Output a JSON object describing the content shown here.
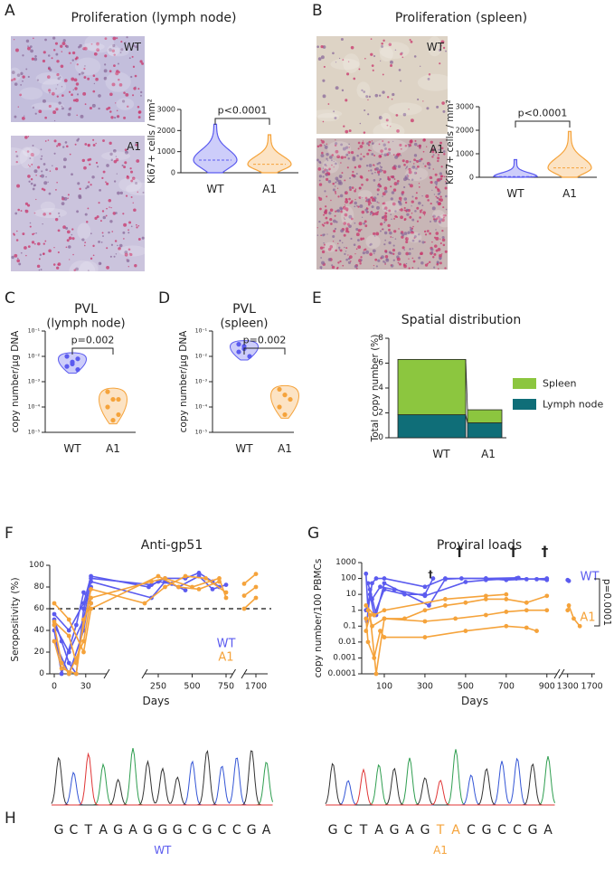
{
  "chart_data": [
    {
      "type": "violin",
      "panel_label": "A",
      "title": "Proliferation (lymph node)",
      "images": [
        {
          "label": "WT",
          "color": "#c3bedc"
        },
        {
          "label": "A1",
          "color": "#cbc4dd"
        }
      ],
      "y_label": "Ki67+ cells / mm²",
      "ylim": [
        0,
        3000
      ],
      "yticks": [
        0,
        1000,
        2000,
        3000
      ],
      "categories": [
        "WT",
        "A1"
      ],
      "distributions": [
        {
          "min": 0,
          "median": 600,
          "max": 2300,
          "color": "#5b5bef"
        },
        {
          "min": 0,
          "median": 400,
          "max": 1800,
          "color": "#f5a33b"
        }
      ],
      "annotation": "p<0.0001"
    },
    {
      "type": "violin",
      "panel_label": "B",
      "title": "Proliferation (spleen)",
      "images": [
        {
          "label": "WT",
          "color": "#ddd3c5"
        },
        {
          "label": "A1",
          "color": "#c8b6b6"
        }
      ],
      "y_label": "Ki67+ cells / mm²",
      "ylim": [
        0,
        3000
      ],
      "yticks": [
        0,
        1000,
        2000,
        3000
      ],
      "categories": [
        "WT",
        "A1"
      ],
      "distributions": [
        {
          "min": 0,
          "median": 30,
          "max": 750,
          "color": "#5b5bef"
        },
        {
          "min": 0,
          "median": 400,
          "max": 1950,
          "color": "#f5a33b"
        }
      ],
      "annotation": "p<0.0001"
    },
    {
      "type": "strip",
      "panel_label": "C",
      "title": "PVL",
      "subtitle": "(lymph node)",
      "y_label": "copy number/µg DNA",
      "log_y": true,
      "ylim": [
        1e-05,
        0.1
      ],
      "yticks": [
        {
          "value": 1e-05,
          "label": "10⁻⁵"
        },
        {
          "value": 0.0001,
          "label": "10⁻⁴"
        },
        {
          "value": 0.001,
          "label": "10⁻³"
        },
        {
          "value": 0.01,
          "label": "10⁻²"
        },
        {
          "value": 0.1,
          "label": "10⁻¹"
        }
      ],
      "categories": [
        "WT",
        "A1"
      ],
      "colors": [
        "#5b5bef",
        "#f5a33b"
      ],
      "values": [
        [
          0.01,
          0.005,
          0.008,
          0.004,
          0.006,
          0.003
        ],
        [
          0.0004,
          0.0002,
          5e-05,
          0.0001,
          3e-05,
          0.0002
        ]
      ],
      "annotation": "p=0.002"
    },
    {
      "type": "strip",
      "panel_label": "D",
      "title": "PVL",
      "subtitle": "(spleen)",
      "y_label": "copy number/µg DNA",
      "log_y": true,
      "ylim": [
        1e-05,
        0.1
      ],
      "yticks": [
        {
          "value": 1e-05,
          "label": "10⁻⁵"
        },
        {
          "value": 0.0001,
          "label": "10⁻⁴"
        },
        {
          "value": 0.001,
          "label": "10⁻³"
        },
        {
          "value": 0.01,
          "label": "10⁻²"
        },
        {
          "value": 0.1,
          "label": "10⁻¹"
        }
      ],
      "categories": [
        "WT",
        "A1"
      ],
      "colors": [
        "#5b5bef",
        "#f5a33b"
      ],
      "values": [
        [
          0.03,
          0.02,
          0.01,
          0.015,
          0.025
        ],
        [
          0.0005,
          0.0003,
          0.0002,
          0.0001,
          5e-05
        ]
      ],
      "annotation": "p=0.002"
    },
    {
      "type": "stacked_bar",
      "panel_label": "E",
      "title": "Spatial distribution",
      "y_label": "Total copy number (%)",
      "ylim": [
        0,
        8
      ],
      "yticks": [
        0,
        2,
        4,
        6,
        8
      ],
      "categories": [
        "WT",
        "A1"
      ],
      "series": [
        {
          "name": "Lymph node",
          "color": "#0f6e78",
          "values": [
            1.85,
            1.2
          ]
        },
        {
          "name": "Spleen",
          "color": "#8cc63f",
          "values": [
            4.45,
            1.05
          ]
        }
      ]
    },
    {
      "type": "line",
      "panel_label": "F",
      "title": "Anti-gp51",
      "y_label": "Seropositivity (%)",
      "x_label": "Days",
      "ylim": [
        0,
        100
      ],
      "yticks": [
        0,
        20,
        40,
        60,
        80,
        100
      ],
      "x_segments": [
        [
          0,
          50
        ],
        [
          150,
          800
        ],
        [
          1650,
          1750
        ]
      ],
      "xticks": [
        0,
        30,
        250,
        500,
        750,
        1700
      ],
      "hline": 60,
      "series": [
        {
          "name": "WT",
          "color": "#5b5bef",
          "subjects": [
            {
              "x": [
                0,
                14,
                28,
                35,
                200,
                300,
                450,
                550,
                650,
                700
              ],
              "values": [
                45,
                20,
                50,
                88,
                82,
                88,
                88,
                93,
                85,
                80
              ]
            },
            {
              "x": [
                0,
                7,
                14,
                21,
                28,
                35,
                200,
                300,
                400,
                550,
                650,
                750
              ],
              "values": [
                50,
                30,
                10,
                0,
                60,
                85,
                70,
                85,
                80,
                90,
                78,
                82
              ]
            },
            {
              "x": [
                0,
                14,
                28,
                35
              ],
              "values": [
                30,
                0,
                40,
                80
              ]
            },
            {
              "x": [
                0,
                7,
                21,
                28,
                35
              ],
              "values": [
                40,
                0,
                45,
                75,
                65
              ]
            },
            {
              "x": [
                0,
                14,
                28,
                35,
                180,
                250,
                350,
                450
              ],
              "values": [
                55,
                40,
                65,
                90,
                80,
                85,
                83,
                77
              ]
            }
          ]
        },
        {
          "name": "A1",
          "color": "#f5a33b",
          "subjects": [
            {
              "x": [
                0,
                7,
                14,
                28,
                35,
                200,
                300,
                500,
                700,
                750
              ],
              "values": [
                45,
                10,
                0,
                30,
                70,
                85,
                88,
                80,
                88,
                70
              ]
            },
            {
              "x": [
                0,
                14,
                28,
                35,
                250,
                400,
                550,
                700
              ],
              "values": [
                65,
                50,
                20,
                60,
                90,
                80,
                78,
                85
              ]
            },
            {
              "x": [
                0,
                7,
                21,
                28,
                35
              ],
              "values": [
                30,
                5,
                0,
                50,
                65
              ]
            },
            {
              "x": [
                0,
                14,
                21,
                35,
                150,
                300,
                450,
                600,
                750
              ],
              "values": [
                48,
                35,
                10,
                78,
                65,
                80,
                90,
                88,
                75
              ]
            },
            {
              "x": [
                1650,
                1700
              ],
              "values": [
                83,
                92
              ]
            },
            {
              "x": [
                1650,
                1700
              ],
              "values": [
                72,
                80
              ]
            },
            {
              "x": [
                1650,
                1700
              ],
              "values": [
                60,
                70
              ]
            }
          ]
        }
      ]
    },
    {
      "type": "line",
      "panel_label": "G",
      "title": "Proviral loads",
      "y_label": "copy number/100 PBMCs",
      "x_label": "Days",
      "log_y": true,
      "ylim": [
        0.0001,
        1000
      ],
      "yticks": [
        0.0001,
        0.001,
        0.01,
        0.1,
        1,
        10,
        100,
        1000
      ],
      "x_segments": [
        [
          0,
          950
        ],
        [
          1200,
          1750
        ]
      ],
      "xticks": [
        100,
        300,
        500,
        700,
        900,
        1300,
        1700
      ],
      "annotation": "p=0.0001",
      "daggers": [
        {
          "text": "†",
          "x": 470,
          "y": 5000
        },
        {
          "text": "†",
          "x": 735,
          "y": 5000
        },
        {
          "text": "†",
          "x": 890,
          "y": 5000
        },
        {
          "text": "†",
          "x": 327,
          "y": 180
        }
      ],
      "series": [
        {
          "name": "WT",
          "color": "#5b5bef",
          "subjects": [
            {
              "x": [
                10,
                20,
                40,
                60,
                100,
                300,
                400,
                600,
                700,
                800,
                900
              ],
              "values": [
                200,
                1,
                50,
                100,
                100,
                30,
                100,
                100,
                80,
                90,
                100
              ]
            },
            {
              "x": [
                10,
                30,
                50,
                100,
                200,
                300,
                340
              ],
              "values": [
                1,
                10,
                0.5,
                20,
                10,
                10,
                100
              ]
            },
            {
              "x": [
                20,
                40,
                80,
                150,
                300,
                500,
                600,
                750,
                850,
                900
              ],
              "values": [
                50,
                5,
                30,
                20,
                8,
                60,
                80,
                100,
                90,
                80
              ]
            },
            {
              "x": [
                15,
                30,
                60,
                100,
                320,
                400,
                480,
                600,
                760
              ],
              "values": [
                0.2,
                20,
                0.5,
                50,
                2,
                90,
                100,
                100,
                110
              ]
            },
            {
              "x": [
                1300,
                1320
              ],
              "values": [
                80,
                70
              ]
            }
          ]
        },
        {
          "name": "A1",
          "color": "#f5a33b",
          "subjects": [
            {
              "x": [
                10,
                20,
                50,
                80,
                100,
                300,
                500,
                700,
                800,
                850
              ],
              "values": [
                0.3,
                0.01,
                0.001,
                0.05,
                0.02,
                0.02,
                0.05,
                0.1,
                0.08,
                0.05
              ]
            },
            {
              "x": [
                10,
                30,
                60,
                100,
                300,
                450,
                600,
                700,
                800,
                900
              ],
              "values": [
                0.05,
                0.5,
                0.0001,
                0.3,
                0.2,
                0.3,
                0.5,
                0.8,
                1,
                1
              ]
            },
            {
              "x": [
                20,
                40,
                100,
                200,
                300,
                400,
                500,
                600,
                700,
                800,
                900
              ],
              "values": [
                1,
                0.1,
                0.3,
                0.3,
                1,
                2,
                3,
                5,
                5,
                3,
                8
              ]
            },
            {
              "x": [
                10,
                50,
                100,
                400,
                600,
                700
              ],
              "values": [
                2,
                0.5,
                1,
                5,
                8,
                10
              ]
            },
            {
              "x": [
                1300,
                1320,
                1400,
                1500
              ],
              "values": [
                1,
                2,
                0.3,
                0.1
              ]
            }
          ]
        }
      ]
    },
    {
      "type": "chromatogram",
      "panel_label": "H",
      "base_colors": {
        "A": "#2f9e50",
        "C": "#3355d6",
        "G": "#333333",
        "T": "#e03535"
      },
      "sequences": [
        {
          "label": "WT",
          "label_color": "#5b5bef",
          "bases": [
            "G",
            "C",
            "T",
            "A",
            "G",
            "A",
            "G",
            "G",
            "G",
            "C",
            "G",
            "C",
            "C",
            "G",
            "A"
          ],
          "highlight": []
        },
        {
          "label": "A1",
          "label_color": "#f5a33b",
          "bases": [
            "G",
            "C",
            "T",
            "A",
            "G",
            "A",
            "G",
            "T",
            "A",
            "C",
            "G",
            "C",
            "C",
            "G",
            "A"
          ],
          "highlight": [
            7,
            8
          ]
        }
      ]
    }
  ]
}
